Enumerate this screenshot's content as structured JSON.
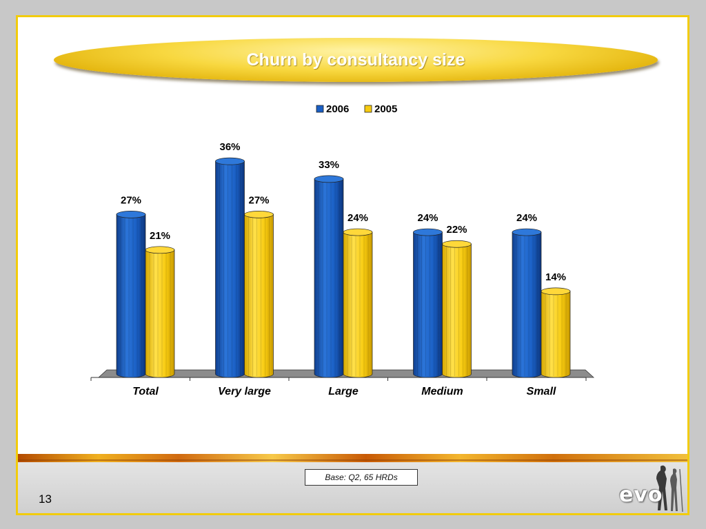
{
  "slide": {
    "title": "Churn by consultancy size",
    "base_note": "Base: Q2, 65 HRDs",
    "page_number": "13",
    "logo_text": "evo"
  },
  "colors": {
    "series_2006": "#1a5fc4",
    "series_2005": "#f7cb10",
    "accent_border": "#f2cc0c"
  },
  "chart_data": {
    "type": "bar",
    "title": "Churn by consultancy size",
    "categories": [
      "Total",
      "Very large",
      "Large",
      "Medium",
      "Small"
    ],
    "series": [
      {
        "name": "2006",
        "values": [
          27,
          36,
          33,
          24,
          24
        ],
        "labels": [
          "27%",
          "36%",
          "33%",
          "24%",
          "24%"
        ],
        "color": "#1a5fc4"
      },
      {
        "name": "2005",
        "values": [
          21,
          27,
          24,
          22,
          14
        ],
        "labels": [
          "21%",
          "27%",
          "24%",
          "22%",
          "14%"
        ],
        "color": "#f7cb10"
      }
    ],
    "ylim": [
      0,
      40
    ],
    "legend": "top-center",
    "grid": false
  }
}
